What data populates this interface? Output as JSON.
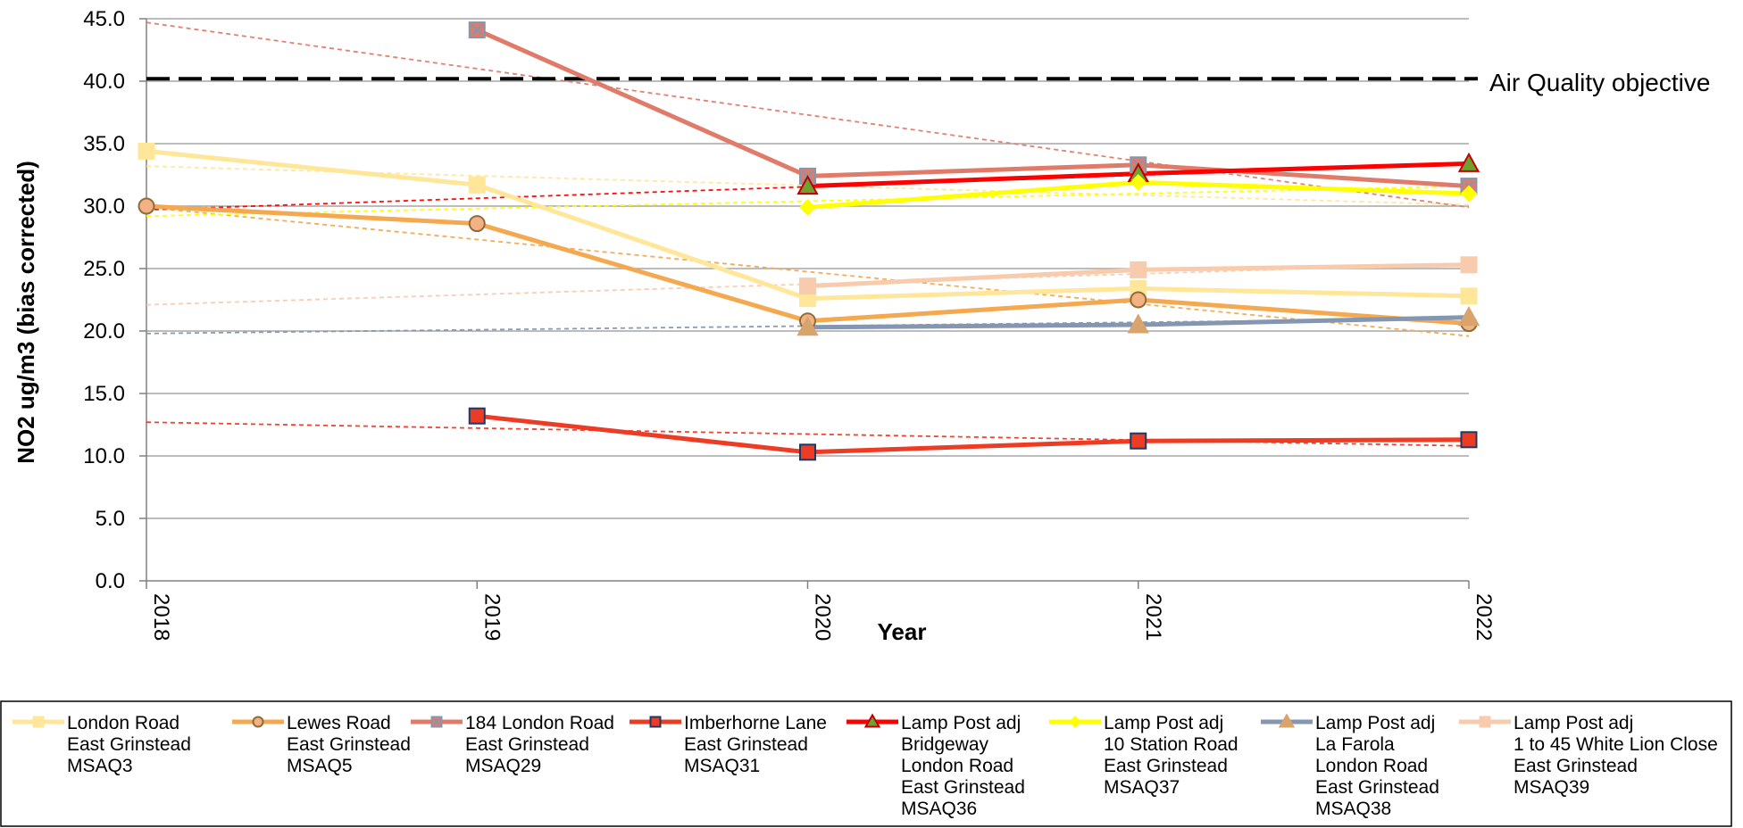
{
  "chart_data": {
    "type": "line",
    "xlabel": "Year",
    "ylabel": "NO2 ug/m3 (bias corrected)",
    "ylim": [
      0,
      45
    ],
    "yticks": [
      "0.0",
      "5.0",
      "10.0",
      "15.0",
      "20.0",
      "25.0",
      "30.0",
      "35.0",
      "40.0",
      "45.0"
    ],
    "categories": [
      "2018",
      "2019",
      "2020",
      "2021",
      "2022"
    ],
    "grid": "horizontal",
    "legend_position": "bottom",
    "objective": {
      "label": "Air Quality objective",
      "value": 40.2,
      "color": "#000000"
    },
    "series": [
      {
        "name_lines": [
          "London Road",
          "East Grinstead",
          "MSAQ3"
        ],
        "color": "#FFE699",
        "marker": "square",
        "marker_fill": "#FFE699",
        "marker_stroke": "#FFE699",
        "values": [
          34.4,
          31.7,
          22.6,
          23.4,
          22.8
        ],
        "trend": [
          33.2,
          30.1
        ]
      },
      {
        "name_lines": [
          "Lewes Road",
          "East Grinstead",
          "MSAQ5"
        ],
        "color": "#F4A84F",
        "marker": "circle",
        "marker_fill": "#F4B183",
        "marker_stroke": "#8C6D3B",
        "values": [
          30.0,
          28.6,
          20.8,
          22.5,
          20.6
        ],
        "trend": [
          29.9,
          19.6
        ]
      },
      {
        "name_lines": [
          "184 London Road",
          "East Grinstead",
          "MSAQ29"
        ],
        "color": "#E07B6A",
        "marker": "square-x",
        "marker_fill": "#E07B6A",
        "marker_stroke": "#8496B0",
        "values": [
          null,
          44.1,
          32.4,
          33.3,
          31.6
        ],
        "trend": [
          44.7,
          29.9
        ]
      },
      {
        "name_lines": [
          "Imberhorne Lane",
          "East Grinstead",
          "MSAQ31"
        ],
        "color": "#EE3B24",
        "marker": "square",
        "marker_fill": "#EE3B24",
        "marker_stroke": "#1F3864",
        "values": [
          null,
          13.2,
          10.3,
          11.2,
          11.3
        ],
        "trend": [
          12.7,
          10.8
        ]
      },
      {
        "name_lines": [
          "Lamp Post adj",
          "Bridgeway",
          "London Road",
          "East Grinstead",
          "MSAQ36"
        ],
        "color": "#FF0000",
        "marker": "triangle",
        "marker_fill": "#70A030",
        "marker_stroke": "#C00000",
        "values": [
          null,
          null,
          31.6,
          32.6,
          33.4
        ],
        "trend": [
          29.7,
          33.4
        ]
      },
      {
        "name_lines": [
          "Lamp Post adj",
          "10 Station Road",
          "East Grinstead",
          "MSAQ37"
        ],
        "color": "#FFFF00",
        "marker": "diamond",
        "marker_fill": "#FFFF00",
        "marker_stroke": "#FFFF00",
        "values": [
          null,
          null,
          29.9,
          31.9,
          31.0
        ],
        "trend": [
          29.2,
          31.6
        ]
      },
      {
        "name_lines": [
          "Lamp Post adj",
          "La Farola",
          "London Road",
          "East Grinstead",
          "MSAQ38"
        ],
        "color": "#8496B0",
        "marker": "triangle",
        "marker_fill": "#D9A46C",
        "marker_stroke": "#D9A46C",
        "values": [
          null,
          null,
          20.3,
          20.5,
          21.1
        ],
        "trend": [
          19.8,
          21.0
        ]
      },
      {
        "name_lines": [
          "Lamp Post adj",
          "1 to 45 White Lion Close",
          "East Grinstead",
          "MSAQ39"
        ],
        "color": "#F8CBAD",
        "marker": "square",
        "marker_fill": "#F8CBAD",
        "marker_stroke": "#F8CBAD",
        "values": [
          null,
          null,
          23.6,
          24.9,
          25.3
        ],
        "trend": [
          22.1,
          25.4
        ]
      }
    ]
  }
}
